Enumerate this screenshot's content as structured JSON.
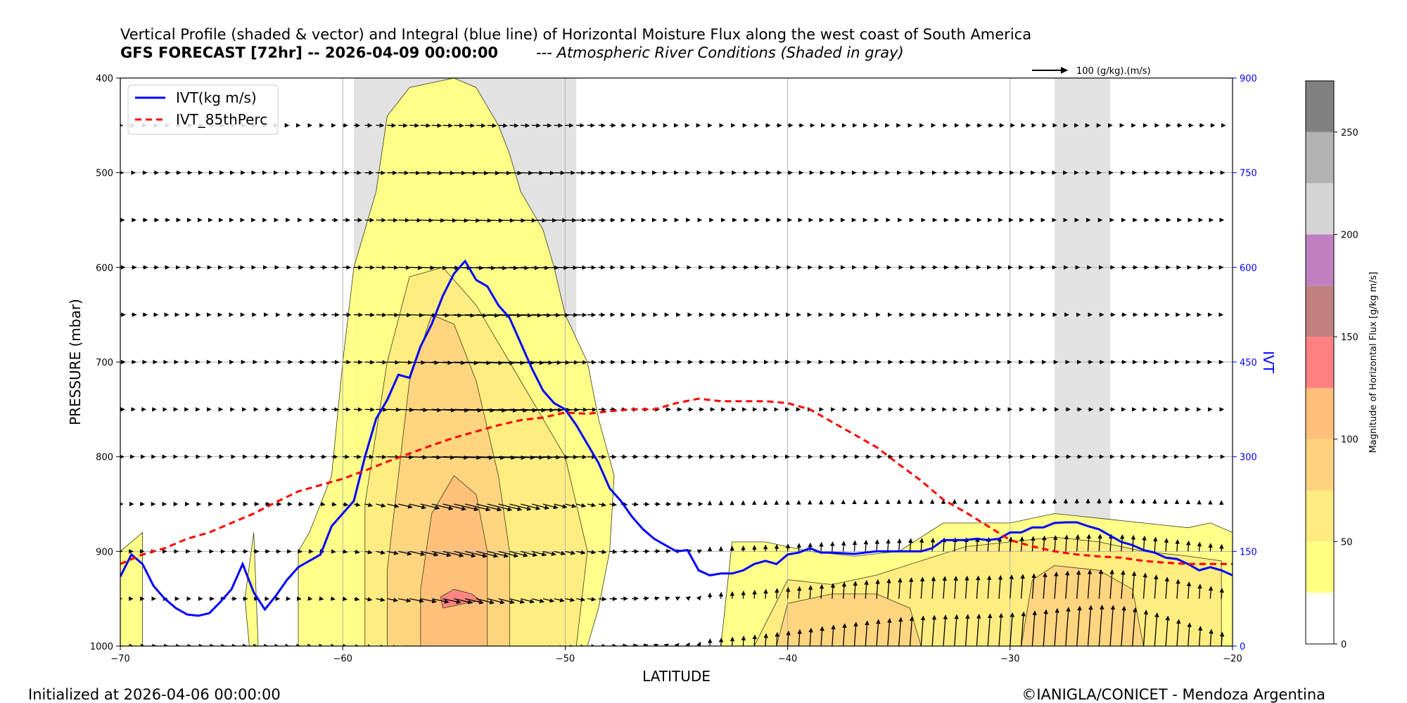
{
  "title": "Vertical Profile (shaded & vector) and Integral (blue line) of Horizontal Moisture Flux along the west coast of South America",
  "subtitle_bold": "GFS FORECAST [72hr] -- 2026-04-09 00:00:00",
  "subtitle_italic": "--- Atmospheric River Conditions (Shaded in gray)",
  "footer_left": "Initialized at 2026-04-06 00:00:00",
  "footer_right": "©IANIGLA/CONICET - Mendoza Argentina",
  "colors": {
    "ivt_line": "#0000ff",
    "perc_line": "#ff0000",
    "ar_shade": "#e2e2e2"
  },
  "chart_data": {
    "type": "contourf+quiver+line",
    "xlabel": "LATITUDE",
    "ylabel": "PRESSURE (mbar)",
    "y2label": "IVT",
    "xlim": [
      -70,
      -20
    ],
    "ylim": [
      400,
      1000
    ],
    "y2lim": [
      0,
      900
    ],
    "xticks": [
      "−70",
      "−60",
      "−50",
      "−40",
      "−30",
      "−20"
    ],
    "yticks": [
      "400",
      "500",
      "600",
      "700",
      "800",
      "900",
      "1000"
    ],
    "y2ticks": [
      "0",
      "150",
      "300",
      "450",
      "600",
      "750",
      "900"
    ],
    "quiver_key_label": "100 (g/kg).(m/s)",
    "legend": [
      {
        "label": "IVT(kg m/s)",
        "color": "#0000ff",
        "style": "solid"
      },
      {
        "label": "IVT_85thPerc",
        "color": "#ff0000",
        "style": "dashed"
      }
    ],
    "ar_bands": [
      [
        -59.5,
        -49.5
      ],
      [
        -28.0,
        -25.5
      ]
    ],
    "ivt": {
      "lat": [
        -70,
        -69.5,
        -69,
        -68.5,
        -68,
        -67.5,
        -67,
        -66.5,
        -66,
        -65.5,
        -65,
        -64.5,
        -64,
        -63.5,
        -63,
        -62.5,
        -62,
        -61.5,
        -61,
        -60.5,
        -60,
        -59.5,
        -59,
        -58.5,
        -58,
        -57.5,
        -57,
        -56.5,
        -56,
        -55.5,
        -55,
        -54.5,
        -54,
        -53.5,
        -53,
        -52.5,
        -52,
        -51.5,
        -51,
        -50.5,
        -50,
        -49.5,
        -49,
        -48.5,
        -48,
        -47.5,
        -47,
        -46.5,
        -46,
        -45.5,
        -45,
        -44.5,
        -44,
        -43.5,
        -43,
        -42.5,
        -42,
        -41.5,
        -41,
        -40.5,
        -40,
        -39.5,
        -39,
        -38.5,
        -38,
        -37,
        -36,
        -35,
        -34,
        -33.5,
        -33,
        -32.5,
        -32,
        -31.5,
        -31,
        -30.5,
        -30,
        -29.5,
        -29,
        -28.5,
        -28,
        -27.5,
        -27,
        -26.5,
        -26,
        -25.5,
        -25,
        -24.5,
        -24,
        -23.5,
        -23,
        -22.5,
        -22,
        -21.5,
        -21,
        -20.5,
        -20
      ],
      "values": [
        110,
        145,
        130,
        95,
        75,
        60,
        50,
        48,
        52,
        70,
        90,
        130,
        85,
        58,
        80,
        105,
        125,
        135,
        145,
        190,
        210,
        230,
        300,
        360,
        390,
        430,
        425,
        475,
        510,
        555,
        590,
        610,
        580,
        570,
        540,
        520,
        480,
        440,
        405,
        385,
        375,
        350,
        320,
        290,
        250,
        230,
        205,
        185,
        170,
        160,
        150,
        152,
        120,
        112,
        115,
        115,
        120,
        130,
        135,
        130,
        145,
        148,
        155,
        148,
        148,
        146,
        150,
        150,
        150,
        155,
        168,
        168,
        168,
        170,
        168,
        170,
        180,
        180,
        188,
        188,
        195,
        196,
        196,
        190,
        185,
        175,
        165,
        160,
        152,
        148,
        140,
        138,
        130,
        120,
        125,
        120,
        112
      ]
    },
    "ivt_85th_percentile": {
      "lat": [
        -70,
        -69,
        -68,
        -67,
        -66,
        -65,
        -64,
        -63,
        -62,
        -61,
        -60,
        -59,
        -58,
        -57,
        -56,
        -55,
        -54,
        -53,
        -52,
        -51,
        -50,
        -49,
        -48,
        -47,
        -46,
        -45,
        -44,
        -43,
        -42,
        -41,
        -40,
        -39,
        -38,
        -37,
        -36,
        -35,
        -34,
        -33,
        -32,
        -31,
        -30,
        -29,
        -28,
        -27,
        -26,
        -25,
        -24,
        -23,
        -22,
        -21,
        -20
      ],
      "values": [
        130,
        145,
        155,
        170,
        180,
        195,
        210,
        228,
        245,
        255,
        265,
        278,
        292,
        305,
        318,
        330,
        340,
        350,
        358,
        362,
        370,
        368,
        372,
        375,
        375,
        385,
        392,
        388,
        388,
        388,
        385,
        375,
        355,
        335,
        315,
        288,
        262,
        232,
        212,
        190,
        168,
        158,
        150,
        145,
        142,
        140,
        135,
        132,
        130,
        130,
        130
      ]
    },
    "moisture_flux_levels": [
      0,
      25,
      50,
      75,
      100,
      125,
      150,
      175,
      200,
      225,
      250,
      275
    ],
    "moisture_flux_colors": [
      "#ffffff",
      "#ffff80",
      "#ffeb80",
      "#ffd280",
      "#ffbf7a",
      "#ff8080",
      "#c08080",
      "#c080c0",
      "#d4d4d4",
      "#b2b2b2",
      "#808080"
    ],
    "moisture_flux_regions": [
      {
        "level": 25,
        "lat": [
          -70.0,
          -69.0,
          -69.0,
          -70.0
        ],
        "p": [
          1000,
          1000,
          880,
          900
        ]
      },
      {
        "level": 25,
        "lat": [
          -64.2,
          -63.8,
          -64.0,
          -64.4
        ],
        "p": [
          1000,
          1000,
          880,
          950
        ]
      },
      {
        "level": 25,
        "lat": [
          -62.0,
          -61.5,
          -60.5,
          -59.5,
          -58.5,
          -57.5,
          -56.5,
          -55.5,
          -54.5,
          -53.5,
          -52.5,
          -51.5,
          -50.0,
          -49.5,
          -49.5,
          -49.0,
          -48.5,
          -48.0,
          -47.8,
          -48.5,
          -49.0,
          -50.0,
          -50.5,
          -51.0,
          -52.0,
          -52.5,
          -53.0,
          -53.5,
          -54.0,
          -55.0,
          -57.0,
          -58.0,
          -58.5,
          -59.0,
          -59.5,
          -60.0,
          -60.5,
          -61.0,
          -61.5,
          -62.0
        ],
        "p": [
          1000,
          1000,
          1000,
          1000,
          1000,
          1000,
          1000,
          1000,
          1000,
          1000,
          1000,
          1000,
          1000,
          1000,
          1000,
          1000,
          960,
          900,
          820,
          760,
          700,
          650,
          600,
          560,
          520,
          480,
          450,
          430,
          410,
          400,
          410,
          440,
          520,
          560,
          600,
          700,
          820,
          850,
          880,
          900
        ]
      },
      {
        "level": 25,
        "lat": [
          -43.0,
          -20.0,
          -20.0,
          -21.0,
          -22.0,
          -24.0,
          -26.0,
          -28.0,
          -30.0,
          -32.0,
          -33.0,
          -35.0,
          -37.0,
          -39.0,
          -41.0,
          -42.5,
          -43.0
        ],
        "p": [
          1000,
          1000,
          880,
          870,
          875,
          870,
          865,
          860,
          870,
          870,
          870,
          900,
          905,
          900,
          890,
          890,
          1000
        ]
      },
      {
        "level": 50,
        "lat": [
          -59.0,
          -49.5,
          -49.0,
          -50.0,
          -51.0,
          -52.5,
          -54.0,
          -55.5,
          -57.0,
          -58.0,
          -59.0
        ],
        "p": [
          1000,
          1000,
          900,
          800,
          760,
          700,
          640,
          600,
          610,
          700,
          850
        ]
      },
      {
        "level": 50,
        "lat": [
          -41.5,
          -20.5,
          -20.5,
          -22.0,
          -24.0,
          -26.0,
          -28.0,
          -30.0,
          -32.0,
          -34.0,
          -36.0,
          -38.0,
          -40.0,
          -41.5
        ],
        "p": [
          1000,
          1000,
          910,
          905,
          900,
          890,
          885,
          890,
          895,
          910,
          925,
          935,
          930,
          1000
        ]
      },
      {
        "level": 75,
        "lat": [
          -58.0,
          -52.5,
          -52.5,
          -53.0,
          -54.0,
          -55.0,
          -56.0,
          -57.0,
          -57.5,
          -58.0
        ],
        "p": [
          1000,
          1000,
          900,
          820,
          720,
          660,
          650,
          720,
          820,
          920
        ]
      },
      {
        "level": 75,
        "lat": [
          -40.5,
          -34.0,
          -34.5,
          -36.0,
          -38.0,
          -40.0,
          -40.5
        ],
        "p": [
          1000,
          1000,
          960,
          945,
          945,
          955,
          1000
        ]
      },
      {
        "level": 75,
        "lat": [
          -29.5,
          -24.0,
          -24.5,
          -26.0,
          -28.0,
          -29.0,
          -29.5
        ],
        "p": [
          1000,
          1000,
          940,
          920,
          915,
          930,
          1000
        ]
      },
      {
        "level": 100,
        "lat": [
          -56.5,
          -53.5,
          -53.5,
          -54.0,
          -55.0,
          -56.0,
          -56.5
        ],
        "p": [
          1000,
          1000,
          900,
          840,
          820,
          860,
          940
        ]
      },
      {
        "level": 125,
        "lat": [
          -55.5,
          -54.5,
          -53.8,
          -54.2,
          -55.0,
          -55.6,
          -55.5
        ],
        "p": [
          960,
          955,
          952,
          945,
          940,
          948,
          960
        ]
      }
    ],
    "quiver_levels_mbar": [
      450,
      500,
      550,
      600,
      650,
      700,
      750,
      800,
      850,
      900,
      950,
      1000
    ]
  }
}
